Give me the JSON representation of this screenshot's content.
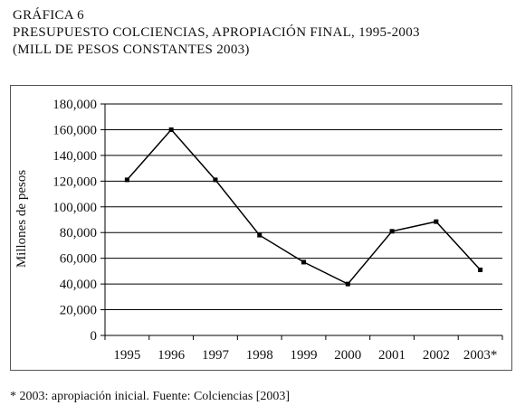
{
  "header": {
    "line1": "GRÁFICA 6",
    "line2": "PRESUPUESTO COLCIENCIAS, APROPIACIÓN FINAL, 1995-2003",
    "line3": "(MILL DE PESOS CONSTANTES 2003)"
  },
  "footnote": "* 2003: apropiación inicial. Fuente: Colciencias [2003]",
  "chart_data": {
    "type": "line",
    "title": "PRESUPUESTO COLCIENCIAS, APROPIACIÓN FINAL, 1995-2003",
    "xlabel": "",
    "ylabel": "Millones de pesos",
    "categories": [
      "1995",
      "1996",
      "1997",
      "1998",
      "1999",
      "2000",
      "2001",
      "2002",
      "2003*"
    ],
    "series": [
      {
        "values": [
          121000,
          160000,
          121000,
          78000,
          57000,
          40000,
          81000,
          88500,
          51000
        ]
      }
    ],
    "ylim": [
      0,
      180000
    ],
    "yticks": [
      0,
      20000,
      40000,
      60000,
      80000,
      100000,
      120000,
      140000,
      160000,
      180000
    ],
    "ytick_labels": [
      "0",
      "20,000",
      "40,000",
      "60,000",
      "80,000",
      "100,000",
      "120,000",
      "140,000",
      "160,000",
      "180,000"
    ],
    "grid": true,
    "legend": "none",
    "line_color": "#000000"
  }
}
